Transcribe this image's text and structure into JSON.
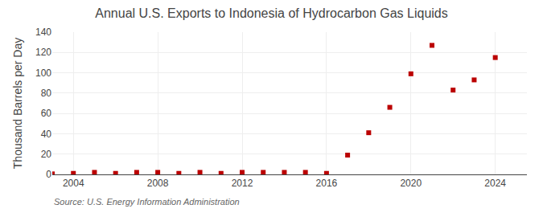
{
  "chart_data": {
    "type": "scatter",
    "title": "Annual U.S. Exports to Indonesia of Hydrocarbon Gas Liquids",
    "ylabel": "Thousand Barrels per Day",
    "annotations": [
      "Source: U.S. Energy Information Administration"
    ],
    "x": [
      2003,
      2004,
      2005,
      2006,
      2007,
      2008,
      2009,
      2010,
      2011,
      2012,
      2013,
      2014,
      2015,
      2016,
      2017,
      2018,
      2019,
      2020,
      2021,
      2022,
      2023,
      2024
    ],
    "values": [
      0.5,
      1,
      2,
      1,
      2,
      2,
      1,
      2,
      1,
      2,
      2,
      2,
      2,
      1,
      19,
      41,
      66,
      99,
      127,
      83,
      93,
      115
    ],
    "color": "#bb0000",
    "marker": "square",
    "xlim": [
      2003.0,
      2025.5
    ],
    "ylim": [
      0,
      140
    ],
    "xticks": [
      2004,
      2008,
      2012,
      2016,
      2020,
      2024
    ],
    "yticks": [
      0,
      20,
      40,
      60,
      80,
      100,
      120,
      140
    ],
    "grid": true
  }
}
